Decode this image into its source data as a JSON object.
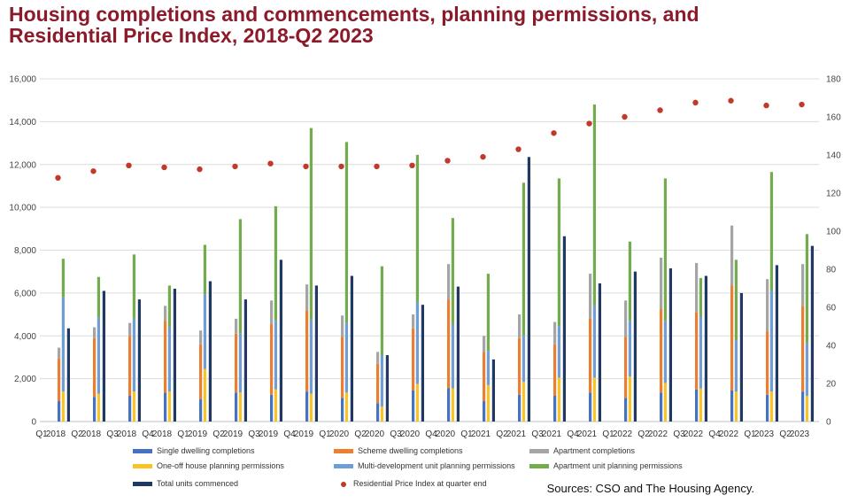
{
  "title_lines": [
    "Housing completions and commencements, planning permissions, and",
    "Residential Price Index, 2018-Q2 2023"
  ],
  "source": "Sources: CSO and The Housing Agency.",
  "chart_data": {
    "type": "bar",
    "subtype": "stacked-and-clustered bars with dot series on secondary axis",
    "y_left": {
      "min": 0,
      "max": 16000,
      "ticks": [
        "0",
        "2,000",
        "4,000",
        "6,000",
        "8,000",
        "10,000",
        "12,000",
        "14,000",
        "16,000"
      ]
    },
    "y_right": {
      "min": 0,
      "max": 180,
      "ticks": [
        "0",
        "20",
        "40",
        "60",
        "80",
        "100",
        "120",
        "140",
        "160",
        "180"
      ]
    },
    "grid": true,
    "legend_position": "bottom",
    "categories": [
      {
        "q": "Q1",
        "y": "2018"
      },
      {
        "q": "Q2",
        "y": "2018"
      },
      {
        "q": "Q3",
        "y": "2018"
      },
      {
        "q": "Q4",
        "y": "2018"
      },
      {
        "q": "Q1",
        "y": "2019"
      },
      {
        "q": "Q2",
        "y": "2019"
      },
      {
        "q": "Q3",
        "y": "2019"
      },
      {
        "q": "Q4",
        "y": "2019"
      },
      {
        "q": "Q1",
        "y": "2020"
      },
      {
        "q": "Q2",
        "y": "2020"
      },
      {
        "q": "Q3",
        "y": "2020"
      },
      {
        "q": "Q4",
        "y": "2020"
      },
      {
        "q": "Q1",
        "y": "2021"
      },
      {
        "q": "Q2",
        "y": "2021"
      },
      {
        "q": "Q3",
        "y": "2021"
      },
      {
        "q": "Q4",
        "y": "2021"
      },
      {
        "q": "Q1",
        "y": "2022"
      },
      {
        "q": "Q2",
        "y": "2022"
      },
      {
        "q": "Q3",
        "y": "2022"
      },
      {
        "q": "Q4",
        "y": "2022"
      },
      {
        "q": "Q1",
        "y": "2023"
      },
      {
        "q": "Q2",
        "y": "2023"
      }
    ],
    "completions": {
      "series": [
        {
          "name": "Single dwelling completions",
          "color": "#4472c4",
          "values": [
            950,
            1150,
            1200,
            1350,
            1050,
            1350,
            1250,
            1400,
            1100,
            850,
            1450,
            1550,
            950,
            1250,
            1200,
            1350,
            1100,
            1350,
            1500,
            1450,
            1250,
            1400
          ]
        },
        {
          "name": "Scheme dwelling completions",
          "color": "#ed7d31",
          "values": [
            2000,
            2750,
            2800,
            3350,
            2550,
            2750,
            3300,
            3800,
            2850,
            1850,
            2900,
            4150,
            2300,
            2650,
            2400,
            3450,
            2850,
            3900,
            3600,
            4900,
            2950,
            4000
          ]
        },
        {
          "name": "Apartment completions",
          "color": "#a5a5a5",
          "values": [
            500,
            500,
            600,
            700,
            650,
            700,
            1100,
            1200,
            1000,
            550,
            650,
            1650,
            750,
            1100,
            1050,
            2100,
            1700,
            2400,
            2300,
            2800,
            2450,
            1950
          ]
        }
      ]
    },
    "permissions": {
      "series": [
        {
          "name": "One-off house planning permissions",
          "color": "#f7c325",
          "values": [
            1400,
            1300,
            1400,
            1400,
            2450,
            1350,
            1500,
            1300,
            1350,
            700,
            1750,
            1550,
            1700,
            1850,
            2050,
            2050,
            2100,
            1800,
            1550,
            1400,
            1400,
            1200
          ]
        },
        {
          "name": "Multi-development unit planning permissions",
          "color": "#6d9fd6",
          "values": [
            4400,
            3550,
            3400,
            3000,
            3500,
            2750,
            3200,
            3450,
            3250,
            2400,
            3850,
            3000,
            1600,
            2150,
            2400,
            3350,
            2600,
            2900,
            3350,
            2400,
            4700,
            2450
          ]
        },
        {
          "name": "Apartment unit planning permissions",
          "color": "#72ac4d",
          "values": [
            1800,
            1900,
            3000,
            1950,
            2300,
            5350,
            5350,
            8950,
            8450,
            4150,
            6850,
            4950,
            3600,
            7150,
            6900,
            9400,
            3700,
            6650,
            1800,
            3750,
            5550,
            5100
          ]
        }
      ]
    },
    "commenced": {
      "name": "Total units commenced",
      "color": "#203864",
      "values": [
        4350,
        6100,
        5700,
        6200,
        6550,
        5700,
        7550,
        6350,
        6800,
        3100,
        5450,
        6300,
        2900,
        12350,
        8650,
        6450,
        7000,
        7150,
        6800,
        6000,
        7300,
        8200
      ]
    },
    "price_index": {
      "name": "Residential Price Index at quarter end",
      "color": "#c0392b",
      "values": [
        128,
        131.5,
        134.5,
        133.5,
        132.5,
        134,
        135.5,
        134,
        134,
        134,
        134.5,
        137,
        139,
        143,
        151.5,
        156.5,
        160,
        163.5,
        167.5,
        168.5,
        166,
        166.5
      ]
    }
  }
}
